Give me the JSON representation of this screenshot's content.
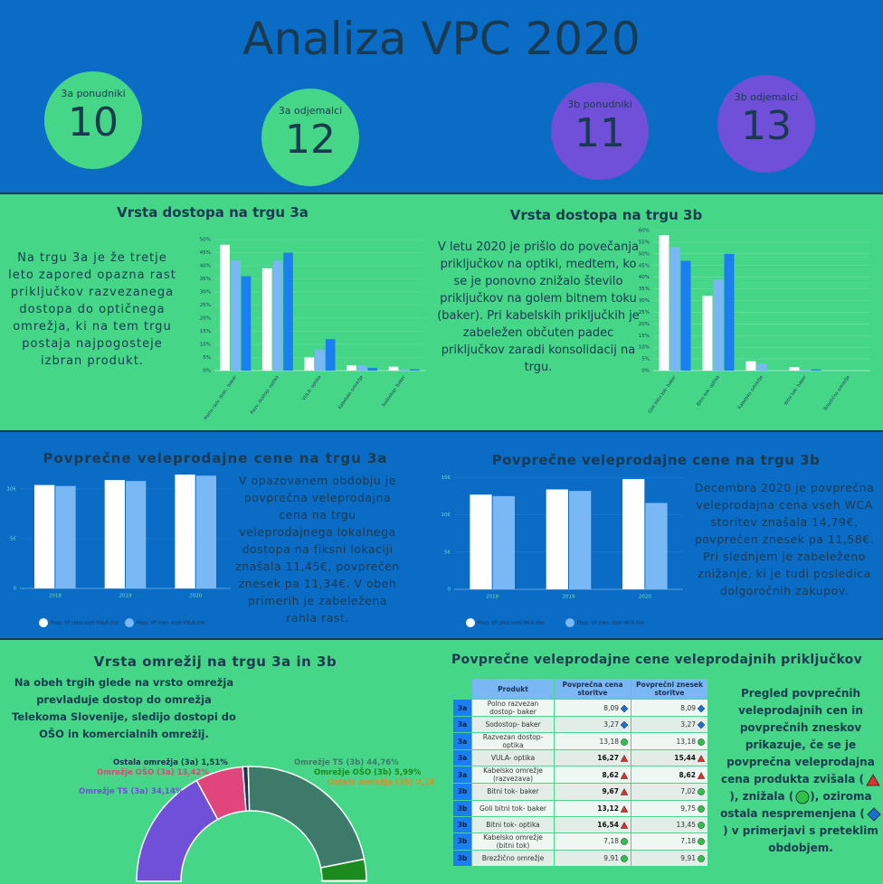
{
  "header": {
    "title": "Analiza VPC 2020",
    "kpis": [
      {
        "label": "3a ponudniki",
        "value": 10,
        "color": "#45d688"
      },
      {
        "label": "3a odjemalci",
        "value": 12,
        "color": "#45d688"
      },
      {
        "label": "3b ponudniki",
        "value": 11,
        "color": "#7050d8"
      },
      {
        "label": "3b odjemalci",
        "value": 13,
        "color": "#7050d8"
      }
    ]
  },
  "chart_data": [
    {
      "type": "bar",
      "title": "Vrsta dostopa na trgu 3a",
      "annotation": "Na trgu 3a je že tretje leto zapored opazna rast priključkov razvezanega dostopa do optičnega omrežja, ki na tem trgu postaja najpogosteje izbran produkt.",
      "categories": [
        "Polno razv. dost.- baker",
        "Razv. dostop- optika",
        "VULA- optika",
        "Kabelsko omrežje",
        "Sodostop- baker"
      ],
      "series": [
        {
          "color": "#ffffff",
          "values": [
            48,
            39,
            5,
            2,
            1.5
          ]
        },
        {
          "color": "#7ab8f5",
          "values": [
            42,
            42,
            8,
            2,
            0.5
          ]
        },
        {
          "color": "#1a7ff0",
          "values": [
            36,
            45,
            12,
            1,
            0.5
          ]
        }
      ],
      "ylim": [
        0,
        50
      ],
      "yticks": [
        {
          "value": 0,
          "label": "0%"
        },
        {
          "value": 5,
          "label": "5%"
        },
        {
          "value": 10,
          "label": "10%"
        },
        {
          "value": 15,
          "label": "15%"
        },
        {
          "value": 20,
          "label": "20%"
        },
        {
          "value": 25,
          "label": "25%"
        },
        {
          "value": 30,
          "label": "30%"
        },
        {
          "value": 35,
          "label": "35%"
        },
        {
          "value": 40,
          "label": "40%"
        },
        {
          "value": 45,
          "label": "45%"
        },
        {
          "value": 50,
          "label": "50%"
        }
      ],
      "grid": true
    },
    {
      "type": "bar",
      "title": "Vrsta dostopa na trgu 3b",
      "annotation": "V letu 2020 je prišlo do povečanja priključkov na optiki, medtem, ko se je ponovno znižalo število priključkov na golem bitnem toku (baker). Pri kabelskih priključkih je zabeležen občuten padec priključkov zaradi konsolidacij na trgu.",
      "categories": [
        "Goli bitni tok- baker",
        "Bitni tok- optika",
        "Kabelsko omrežje",
        "Bitni tok- baker",
        "Brezžično omrežje"
      ],
      "series": [
        {
          "color": "#ffffff",
          "values": [
            58,
            32,
            4,
            1.5,
            0
          ]
        },
        {
          "color": "#7ab8f5",
          "values": [
            53,
            39,
            3,
            0.5,
            0
          ]
        },
        {
          "color": "#1a7ff0",
          "values": [
            47,
            50,
            0,
            0.5,
            0
          ]
        }
      ],
      "ylim": [
        0,
        60
      ],
      "yticks": [
        {
          "value": 0,
          "label": "0%"
        },
        {
          "value": 5,
          "label": "5%"
        },
        {
          "value": 10,
          "label": "10%"
        },
        {
          "value": 15,
          "label": "15%"
        },
        {
          "value": 20,
          "label": "20%"
        },
        {
          "value": 25,
          "label": "25%"
        },
        {
          "value": 30,
          "label": "30%"
        },
        {
          "value": 35,
          "label": "35%"
        },
        {
          "value": 40,
          "label": "40%"
        },
        {
          "value": 45,
          "label": "45%"
        },
        {
          "value": 50,
          "label": "50%"
        },
        {
          "value": 55,
          "label": "55%"
        },
        {
          "value": 60,
          "label": "60%"
        }
      ],
      "grid": true
    },
    {
      "type": "bar",
      "title": "Povprečne veleprodajne cene na trgu 3a",
      "annotation": "V opazovanem obdobju je povprečna veleprodajna cena na trgu veleprodajnega lokalnega dostopa na fiksni lokaciji znašala 11,45€, povprečen znesek pa 11,34€. V obeh primerih je zabeležena rahla rast.",
      "categories": [
        "2018",
        "2019",
        "2020"
      ],
      "series": [
        {
          "name": "Povp. VP cena vseh VULA stor.",
          "color": "#ffffff",
          "values": [
            10.4,
            10.9,
            11.45
          ]
        },
        {
          "name": "Povp. VP znes. vseh VULA stor.",
          "color": "#7ab8f5",
          "values": [
            10.3,
            10.8,
            11.34
          ]
        }
      ],
      "ylim": [
        0,
        12
      ],
      "yticks": [
        0,
        {
          "value": 5,
          "label": "5€"
        },
        {
          "value": 10,
          "label": "10€"
        }
      ],
      "grid": true
    },
    {
      "type": "bar",
      "title": "Povprečne veleprodajne cene na trgu 3b",
      "annotation": "Decembra 2020 je povprečna veleprodajna cena vseh WCA storitev znašala 14,79€, povprečen znesek pa 11,58€. Pri slednjem je zabeleženo znižanje, ki je tudi posledica dolgoročnih zakupov.",
      "categories": [
        "2018",
        "2019",
        "2020"
      ],
      "series": [
        {
          "name": "Povp. VP cena vseh WCA stor.",
          "color": "#ffffff",
          "values": [
            12.7,
            13.4,
            14.79
          ]
        },
        {
          "name": "Povp. VP znes. vseh WCA stor.",
          "color": "#7ab8f5",
          "values": [
            12.5,
            13.2,
            11.58
          ]
        }
      ],
      "ylim": [
        0,
        16
      ],
      "yticks": [
        0,
        {
          "value": 5,
          "label": "5€"
        },
        {
          "value": 10,
          "label": "10€"
        },
        {
          "value": 15,
          "label": "15€"
        }
      ],
      "grid": true
    },
    {
      "type": "halfdonut",
      "title": "Vrsta omrežij na trgu 3a in 3b",
      "annotation": "Na obeh trgih glede na vrsto omrežja prevladuje dostop do omrežja Telekoma Slovenije, sledijo dostopi do OŠO in komercialnih omrežij.",
      "categories": [
        "Omrežje TS (3a)",
        "Omrežje OŠO (3a)",
        "Ostala omrežja (3a)",
        "Omrežje TS (3b)",
        "Omrežje OŠO (3b)",
        "Ostala omrežja (3b)"
      ],
      "values": [
        34.14,
        13.42,
        1.51,
        44.76,
        5.99,
        0.18
      ],
      "value_labels": [
        "34,14%",
        "13,42%",
        "1,51%",
        "44,76%",
        "5,99%",
        "0,18%"
      ],
      "colors": [
        "#7050d8",
        "#e0457b",
        "#1e3050",
        "#3d7a6a",
        "#1d8a1d",
        "#e08a30"
      ]
    }
  ],
  "table": {
    "title": "Povprečne veleprodajne cene veleprodajnih priključkov",
    "columns": [
      "Produkt",
      "Povprečna cena storitve",
      "Povprečni znesek storitve"
    ],
    "rows": [
      {
        "market": "3a",
        "product": "Polno razvezan dostop- baker",
        "price": {
          "text": "8,09",
          "icon": "diamond"
        },
        "amount": {
          "text": "8,09",
          "icon": "diamond"
        }
      },
      {
        "market": "3a",
        "product": "Sodostop- baker",
        "price": {
          "text": "3,27",
          "icon": "diamond"
        },
        "amount": {
          "text": "3,27",
          "icon": "diamond"
        }
      },
      {
        "market": "3a",
        "product": "Razvezan dostop- optika",
        "price": {
          "text": "13,18",
          "icon": "circle"
        },
        "amount": {
          "text": "13,18",
          "icon": "circle"
        }
      },
      {
        "market": "3a",
        "product": "VULA- optika",
        "price": {
          "text": "16,27",
          "icon": "triangle"
        },
        "amount": {
          "text": "15,44",
          "icon": "triangle"
        }
      },
      {
        "market": "3a",
        "product": "Kabelsko omrežje (razvezava)",
        "price": {
          "text": "8,62",
          "icon": "triangle"
        },
        "amount": {
          "text": "8,62",
          "icon": "triangle"
        }
      },
      {
        "market": "3b",
        "product": "Bitni tok- baker",
        "price": {
          "text": "9,67",
          "icon": "triangle"
        },
        "amount": {
          "text": "7,02",
          "icon": "circle"
        }
      },
      {
        "market": "3b",
        "product": "Goli bitni tok- baker",
        "price": {
          "text": "13,12",
          "icon": "triangle"
        },
        "amount": {
          "text": "9,75",
          "icon": "circle"
        }
      },
      {
        "market": "3b",
        "product": "Bitni tok- optika",
        "price": {
          "text": "16,54",
          "icon": "triangle"
        },
        "amount": {
          "text": "13,45",
          "icon": "circle"
        }
      },
      {
        "market": "3b",
        "product": "Kabelsko omrežje (bitni tok)",
        "price": {
          "text": "7,18",
          "icon": "circle"
        },
        "amount": {
          "text": "7,18",
          "icon": "circle"
        }
      },
      {
        "market": "3b",
        "product": "Brezžično omrežje",
        "price": {
          "text": "9,91",
          "icon": "circle"
        },
        "amount": {
          "text": "9,91",
          "icon": "circle"
        }
      }
    ],
    "legend_text": [
      "Pregled povprečnih veleprodajnih cen in povprečnih zneskov prikazuje, če se je povprečna veleprodajna cena produkta zvišala (",
      "), znižala (",
      "), oziroma ostala nespremenjena (",
      ") v primerjavi s preteklim obdobjem."
    ]
  }
}
